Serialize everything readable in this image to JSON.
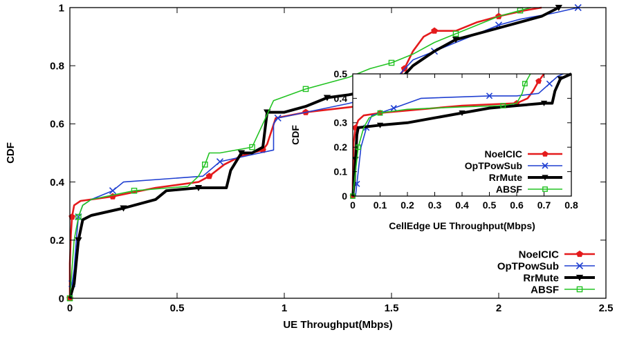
{
  "chart_data": [
    {
      "type": "line",
      "id": "main",
      "xlabel": "UE Throughput(Mbps)",
      "ylabel": "CDF",
      "xlim": [
        0,
        2.5
      ],
      "ylim": [
        0,
        1
      ],
      "xticks": [
        0,
        0.5,
        1,
        1.5,
        2,
        2.5
      ],
      "xtick_labels": [
        "0",
        "0.5",
        "1",
        "1.5",
        "2",
        "2.5"
      ],
      "yticks": [
        0,
        0.2,
        0.4,
        0.6,
        0.8,
        1
      ],
      "ytick_labels": [
        "0",
        "0.2",
        "0.4",
        "0.6",
        "0.8",
        "1"
      ],
      "grid": false,
      "legend_position": "bottom-right",
      "series": [
        {
          "name": "NoeICIC",
          "color": "#e41a1c",
          "marker": "pentagon",
          "points": [
            [
              0,
              0
            ],
            [
              0,
              0.12
            ],
            [
              0.005,
              0.22
            ],
            [
              0.01,
              0.28
            ],
            [
              0.02,
              0.32
            ],
            [
              0.05,
              0.335
            ],
            [
              0.2,
              0.35
            ],
            [
              0.4,
              0.38
            ],
            [
              0.6,
              0.4
            ],
            [
              0.65,
              0.42
            ],
            [
              0.72,
              0.46
            ],
            [
              0.8,
              0.49
            ],
            [
              0.9,
              0.51
            ],
            [
              0.92,
              0.53
            ],
            [
              0.96,
              0.62
            ],
            [
              1.1,
              0.64
            ],
            [
              1.45,
              0.67
            ],
            [
              1.5,
              0.72
            ],
            [
              1.56,
              0.79
            ],
            [
              1.6,
              0.85
            ],
            [
              1.65,
              0.9
            ],
            [
              1.7,
              0.92
            ],
            [
              1.8,
              0.92
            ],
            [
              1.9,
              0.95
            ],
            [
              2,
              0.97
            ],
            [
              2.12,
              0.99
            ],
            [
              2.2,
              1
            ]
          ]
        },
        {
          "name": "OpTPowSub",
          "color": "#1f3fd1",
          "marker": "x",
          "points": [
            [
              0.01,
              0
            ],
            [
              0.01,
              0.05
            ],
            [
              0.02,
              0.1
            ],
            [
              0.03,
              0.2
            ],
            [
              0.04,
              0.28
            ],
            [
              0.06,
              0.32
            ],
            [
              0.1,
              0.34
            ],
            [
              0.2,
              0.37
            ],
            [
              0.25,
              0.4
            ],
            [
              0.62,
              0.42
            ],
            [
              0.7,
              0.47
            ],
            [
              0.95,
              0.51
            ],
            [
              0.95,
              0.6
            ],
            [
              0.97,
              0.62
            ],
            [
              1.3,
              0.67
            ],
            [
              1.45,
              0.7
            ],
            [
              1.5,
              0.74
            ],
            [
              1.55,
              0.78
            ],
            [
              1.6,
              0.82
            ],
            [
              1.7,
              0.85
            ],
            [
              1.8,
              0.88
            ],
            [
              1.9,
              0.91
            ],
            [
              2.0,
              0.94
            ],
            [
              2.1,
              0.96
            ],
            [
              2.25,
              0.98
            ],
            [
              2.37,
              1
            ]
          ]
        },
        {
          "name": "RrMute",
          "color": "#000000",
          "marker": "triangle-down",
          "points": [
            [
              0,
              0
            ],
            [
              0.02,
              0.05
            ],
            [
              0.04,
              0.2
            ],
            [
              0.06,
              0.27
            ],
            [
              0.1,
              0.285
            ],
            [
              0.25,
              0.31
            ],
            [
              0.4,
              0.34
            ],
            [
              0.45,
              0.37
            ],
            [
              0.6,
              0.38
            ],
            [
              0.73,
              0.38
            ],
            [
              0.75,
              0.44
            ],
            [
              0.8,
              0.5
            ],
            [
              0.85,
              0.5
            ],
            [
              0.9,
              0.52
            ],
            [
              0.92,
              0.64
            ],
            [
              1.0,
              0.64
            ],
            [
              1.1,
              0.66
            ],
            [
              1.2,
              0.69
            ],
            [
              1.3,
              0.7
            ],
            [
              1.45,
              0.72
            ],
            [
              1.55,
              0.76
            ],
            [
              1.6,
              0.8
            ],
            [
              1.7,
              0.85
            ],
            [
              1.8,
              0.89
            ],
            [
              2.0,
              0.93
            ],
            [
              2.2,
              0.97
            ],
            [
              2.28,
              1
            ]
          ]
        },
        {
          "name": "ABSF",
          "color": "#22c322",
          "marker": "square",
          "points": [
            [
              0,
              0
            ],
            [
              0.005,
              0.05
            ],
            [
              0.02,
              0.2
            ],
            [
              0.04,
              0.28
            ],
            [
              0.06,
              0.32
            ],
            [
              0.1,
              0.34
            ],
            [
              0.3,
              0.37
            ],
            [
              0.55,
              0.385
            ],
            [
              0.6,
              0.42
            ],
            [
              0.63,
              0.46
            ],
            [
              0.65,
              0.5
            ],
            [
              0.7,
              0.5
            ],
            [
              0.85,
              0.52
            ],
            [
              0.9,
              0.6
            ],
            [
              0.95,
              0.68
            ],
            [
              1.1,
              0.72
            ],
            [
              1.3,
              0.76
            ],
            [
              1.4,
              0.79
            ],
            [
              1.5,
              0.81
            ],
            [
              1.6,
              0.84
            ],
            [
              1.7,
              0.88
            ],
            [
              1.8,
              0.91
            ],
            [
              1.9,
              0.94
            ],
            [
              2.0,
              0.97
            ],
            [
              2.1,
              0.99
            ],
            [
              2.15,
              1
            ]
          ]
        }
      ]
    },
    {
      "type": "line",
      "id": "inset",
      "xlabel": "CellEdge UE Throughput(Mbps)",
      "ylabel": "CDF",
      "xlim": [
        0,
        0.8
      ],
      "ylim": [
        0,
        0.5
      ],
      "xticks": [
        0,
        0.1,
        0.2,
        0.3,
        0.4,
        0.5,
        0.6,
        0.7,
        0.8
      ],
      "xtick_labels": [
        "0",
        "0.1",
        "0.2",
        "0.3",
        "0.4",
        "0.5",
        "0.6",
        "0.7",
        "0.8"
      ],
      "yticks": [
        0,
        0.1,
        0.2,
        0.3,
        0.4,
        0.5
      ],
      "ytick_labels": [
        "0",
        "0.1",
        "0.2",
        "0.3",
        "0.4",
        "0.5"
      ],
      "grid": false,
      "legend_position": "middle-right",
      "series": [
        {
          "name": "NoeICIC",
          "color": "#e41a1c",
          "marker": "pentagon",
          "points": [
            [
              0,
              0
            ],
            [
              0,
              0.05
            ],
            [
              0.003,
              0.22
            ],
            [
              0.01,
              0.28
            ],
            [
              0.02,
              0.31
            ],
            [
              0.04,
              0.33
            ],
            [
              0.1,
              0.34
            ],
            [
              0.2,
              0.35
            ],
            [
              0.4,
              0.37
            ],
            [
              0.6,
              0.38
            ],
            [
              0.64,
              0.4
            ],
            [
              0.66,
              0.43
            ],
            [
              0.68,
              0.47
            ],
            [
              0.7,
              0.5
            ]
          ]
        },
        {
          "name": "OpTPowSub",
          "color": "#1f3fd1",
          "marker": "x",
          "points": [
            [
              0.01,
              0
            ],
            [
              0.015,
              0.05
            ],
            [
              0.02,
              0.1
            ],
            [
              0.03,
              0.2
            ],
            [
              0.05,
              0.28
            ],
            [
              0.07,
              0.33
            ],
            [
              0.1,
              0.34
            ],
            [
              0.15,
              0.36
            ],
            [
              0.2,
              0.38
            ],
            [
              0.25,
              0.4
            ],
            [
              0.5,
              0.41
            ],
            [
              0.6,
              0.41
            ],
            [
              0.68,
              0.42
            ],
            [
              0.72,
              0.46
            ],
            [
              0.75,
              0.49
            ],
            [
              0.77,
              0.5
            ]
          ]
        },
        {
          "name": "RrMute",
          "color": "#000000",
          "marker": "triangle-down",
          "points": [
            [
              0,
              0
            ],
            [
              0.005,
              0.05
            ],
            [
              0.01,
              0.15
            ],
            [
              0.015,
              0.25
            ],
            [
              0.02,
              0.28
            ],
            [
              0.1,
              0.29
            ],
            [
              0.2,
              0.3
            ],
            [
              0.3,
              0.32
            ],
            [
              0.4,
              0.34
            ],
            [
              0.5,
              0.36
            ],
            [
              0.6,
              0.37
            ],
            [
              0.7,
              0.38
            ],
            [
              0.73,
              0.38
            ],
            [
              0.74,
              0.43
            ],
            [
              0.76,
              0.48
            ],
            [
              0.8,
              0.5
            ]
          ]
        },
        {
          "name": "ABSF",
          "color": "#22c322",
          "marker": "square",
          "points": [
            [
              0,
              0
            ],
            [
              0.005,
              0.05
            ],
            [
              0.01,
              0.1
            ],
            [
              0.02,
              0.2
            ],
            [
              0.04,
              0.28
            ],
            [
              0.06,
              0.32
            ],
            [
              0.1,
              0.34
            ],
            [
              0.2,
              0.355
            ],
            [
              0.4,
              0.365
            ],
            [
              0.55,
              0.37
            ],
            [
              0.6,
              0.38
            ],
            [
              0.62,
              0.42
            ],
            [
              0.63,
              0.46
            ],
            [
              0.65,
              0.5
            ]
          ]
        }
      ]
    }
  ]
}
